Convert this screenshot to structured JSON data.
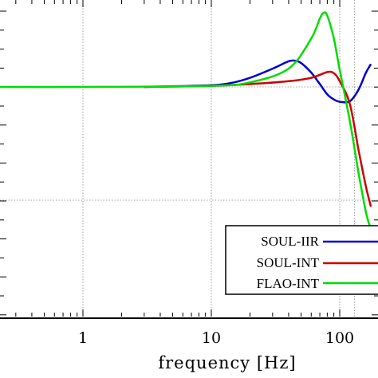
{
  "chart_data": {
    "type": "line",
    "xlabel": "frequency [Hz]",
    "xscale": "log",
    "x_ticks": [
      {
        "value": 1,
        "label": "1"
      },
      {
        "value": 10,
        "label": "10"
      },
      {
        "value": 100,
        "label": "100"
      }
    ],
    "x_visible_range": [
      0.13,
      300
    ],
    "grid": true,
    "legend": {
      "placement": "bottom-right",
      "entries": [
        "SOUL-IIR",
        "SOUL-INT",
        "FLAO-INT"
      ]
    },
    "series": [
      {
        "name": "SOUL-IIR",
        "color": "#0000cc",
        "points": [
          [
            3,
            0
          ],
          [
            10,
            0.03
          ],
          [
            15,
            0.08
          ],
          [
            20,
            0.16
          ],
          [
            30,
            0.32
          ],
          [
            40,
            0.45
          ],
          [
            45,
            0.46
          ],
          [
            50,
            0.42
          ],
          [
            60,
            0.25
          ],
          [
            70,
            0.05
          ],
          [
            80,
            -0.13
          ],
          [
            90,
            -0.22
          ],
          [
            100,
            -0.26
          ],
          [
            120,
            -0.25
          ],
          [
            140,
            -0.05
          ],
          [
            160,
            0.25
          ],
          [
            175,
            0.4
          ]
        ]
      },
      {
        "name": "SOUL-INT",
        "color": "#cc0000",
        "points": [
          [
            3,
            0
          ],
          [
            10,
            0.02
          ],
          [
            20,
            0.05
          ],
          [
            40,
            0.1
          ],
          [
            60,
            0.16
          ],
          [
            80,
            0.26
          ],
          [
            90,
            0.24
          ],
          [
            100,
            0.1
          ],
          [
            120,
            -0.3
          ],
          [
            140,
            -1.1
          ],
          [
            160,
            -1.75
          ],
          [
            175,
            -2.1
          ]
        ]
      },
      {
        "name": "FLAO-INT",
        "color": "#00dd00",
        "points": [
          [
            0.13,
            0
          ],
          [
            1,
            0
          ],
          [
            10,
            0.02
          ],
          [
            20,
            0.08
          ],
          [
            40,
            0.32
          ],
          [
            60,
            0.85
          ],
          [
            70,
            1.2
          ],
          [
            75,
            1.3
          ],
          [
            80,
            1.25
          ],
          [
            90,
            0.85
          ],
          [
            100,
            0.3
          ],
          [
            120,
            -0.6
          ],
          [
            140,
            -1.5
          ],
          [
            160,
            -2.2
          ],
          [
            175,
            -2.5
          ]
        ]
      }
    ]
  }
}
